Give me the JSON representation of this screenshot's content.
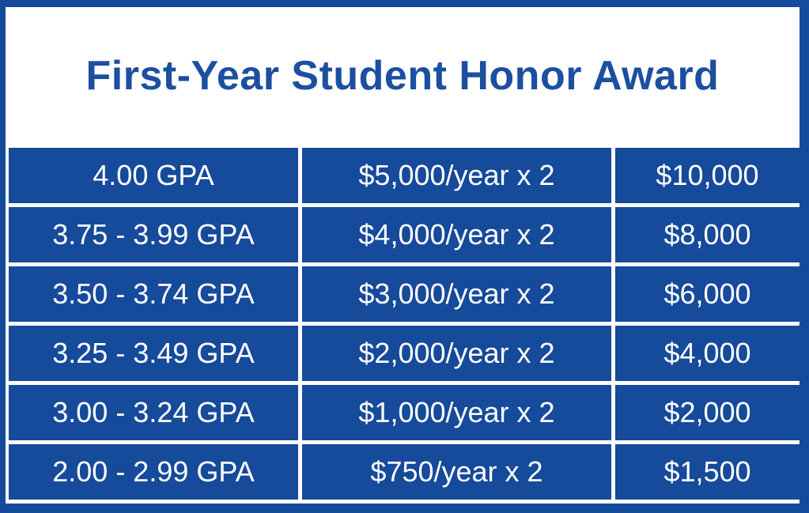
{
  "title": "First-Year Student Honor Award",
  "colors": {
    "blue": "#164A9B",
    "title_blue": "#1C4F9F",
    "text_on_blue": "#FFFFFF",
    "header_background": "#FFFFFF"
  },
  "chart_data": {
    "type": "table",
    "title": "First-Year Student Honor Award",
    "rows": [
      [
        "4.00 GPA",
        "$5,000/year x 2",
        "$10,000"
      ],
      [
        "3.75 - 3.99 GPA",
        "$4,000/year x 2",
        "$8,000"
      ],
      [
        "3.50 - 3.74 GPA",
        "$3,000/year x 2",
        "$6,000"
      ],
      [
        "3.25 - 3.49 GPA",
        "$2,000/year x 2",
        "$4,000"
      ],
      [
        "3.00 - 3.24 GPA",
        "$1,000/year x 2",
        "$2,000"
      ],
      [
        "2.00 - 2.99 GPA",
        "$750/year x 2",
        "$1,500"
      ]
    ],
    "layout": {
      "columns": 3,
      "grid": "blue cells separated by thin white gutters",
      "legend": "none",
      "column_headers_visible": false
    }
  }
}
